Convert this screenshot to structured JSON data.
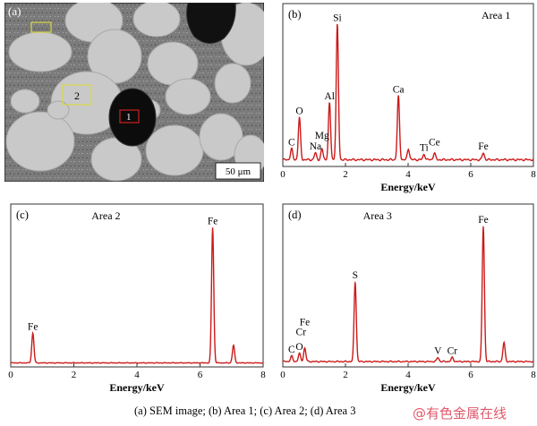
{
  "sem": {
    "label": "(a)",
    "scale_bar": "50 μm",
    "area_labels": [
      "1",
      "2"
    ]
  },
  "chart_data": [
    {
      "type": "line",
      "panel_label": "(b)",
      "area_label": "Area 1",
      "xlabel": "Energy/keV",
      "xlim": [
        0,
        8
      ],
      "xticks": [
        0,
        2,
        4,
        6,
        8
      ],
      "ylim": [
        0,
        100
      ],
      "color": "#cc1a1a",
      "baseline": 3,
      "peaks": [
        {
          "x": 0.28,
          "y": 8
        },
        {
          "x": 0.53,
          "y": 31
        },
        {
          "x": 1.04,
          "y": 5
        },
        {
          "x": 1.25,
          "y": 8
        },
        {
          "x": 1.49,
          "y": 42
        },
        {
          "x": 1.74,
          "y": 100
        },
        {
          "x": 3.69,
          "y": 47
        },
        {
          "x": 4.01,
          "y": 8
        },
        {
          "x": 4.51,
          "y": 4
        },
        {
          "x": 4.84,
          "y": 5
        },
        {
          "x": 6.4,
          "y": 5
        }
      ],
      "labels": [
        {
          "text": "C",
          "x": 0.28,
          "y": 8
        },
        {
          "text": "O",
          "x": 0.53,
          "y": 31
        },
        {
          "text": "Na",
          "x": 1.04,
          "y": 5
        },
        {
          "text": "Mg",
          "x": 1.25,
          "y": 13
        },
        {
          "text": "Al",
          "x": 1.49,
          "y": 42
        },
        {
          "text": "Si",
          "x": 1.74,
          "y": 100
        },
        {
          "text": "Ca",
          "x": 3.69,
          "y": 47
        },
        {
          "text": "Ti",
          "x": 4.51,
          "y": 4
        },
        {
          "text": "Ce",
          "x": 4.84,
          "y": 8
        },
        {
          "text": "Fe",
          "x": 6.4,
          "y": 5
        }
      ]
    },
    {
      "type": "line",
      "panel_label": "(c)",
      "area_label": "Area 2",
      "xlabel": "Energy/keV",
      "xlim": [
        0,
        8
      ],
      "xticks": [
        0,
        2,
        4,
        6,
        8
      ],
      "ylim": [
        0,
        100
      ],
      "color": "#cc1a1a",
      "baseline": 1,
      "peaks": [
        {
          "x": 0.7,
          "y": 22
        },
        {
          "x": 6.4,
          "y": 100
        },
        {
          "x": 7.06,
          "y": 13
        }
      ],
      "labels": [
        {
          "text": "Fe",
          "x": 0.7,
          "y": 22
        },
        {
          "text": "Fe",
          "x": 6.4,
          "y": 100
        }
      ]
    },
    {
      "type": "line",
      "panel_label": "(d)",
      "area_label": "Area 3",
      "xlabel": "Energy/keV",
      "xlim": [
        0,
        8
      ],
      "xticks": [
        0,
        2,
        4,
        6,
        8
      ],
      "ylim": [
        0,
        100
      ],
      "color": "#cc1a1a",
      "baseline": 2,
      "peaks": [
        {
          "x": 0.28,
          "y": 4
        },
        {
          "x": 0.53,
          "y": 6
        },
        {
          "x": 0.7,
          "y": 10
        },
        {
          "x": 2.31,
          "y": 59
        },
        {
          "x": 4.95,
          "y": 3
        },
        {
          "x": 5.41,
          "y": 3
        },
        {
          "x": 6.4,
          "y": 100
        },
        {
          "x": 7.06,
          "y": 14
        }
      ],
      "labels": [
        {
          "text": "C",
          "x": 0.28,
          "y": 4
        },
        {
          "text": "O",
          "x": 0.53,
          "y": 6
        },
        {
          "text": "Cr",
          "x": 0.58,
          "y": 17
        },
        {
          "text": "Fe",
          "x": 0.7,
          "y": 24
        },
        {
          "text": "S",
          "x": 2.31,
          "y": 59
        },
        {
          "text": "V",
          "x": 4.95,
          "y": 3
        },
        {
          "text": "Cr",
          "x": 5.41,
          "y": 3
        },
        {
          "text": "Fe",
          "x": 6.4,
          "y": 100
        }
      ]
    }
  ],
  "caption": "(a) SEM image; (b) Area 1; (c) Area 2; (d) Area 3",
  "watermark": "@有色金属在线"
}
